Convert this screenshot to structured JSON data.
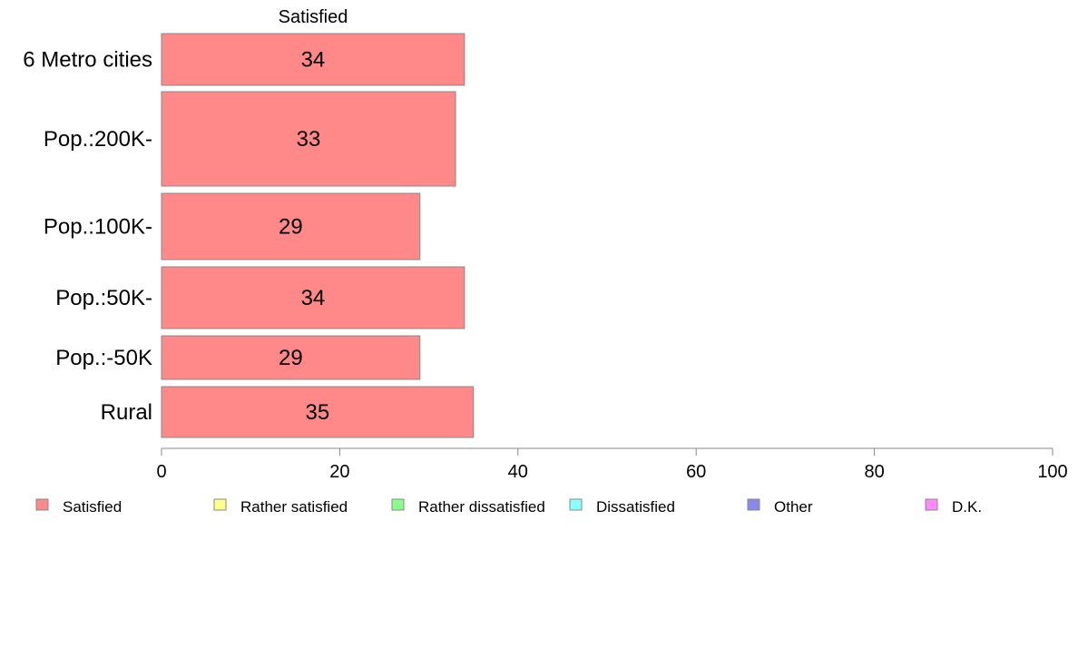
{
  "chart_data": {
    "type": "bar",
    "orientation": "horizontal",
    "series_title": "Satisfied",
    "categories": [
      "6 Metro cities",
      "Pop.:200K-",
      "Pop.:100K-",
      "Pop.:50K-",
      "Pop.:-50K",
      "Rural"
    ],
    "series": [
      {
        "name": "Satisfied",
        "values": [
          34,
          33,
          29,
          34,
          29,
          35
        ],
        "color": "#ff8888"
      }
    ],
    "value_labels": [
      "34",
      "33",
      "29",
      "34",
      "29",
      "35"
    ],
    "xlim": [
      0,
      100
    ],
    "xticks": [
      0,
      20,
      40,
      60,
      80,
      100
    ],
    "grid": false,
    "legend_position": "bottom",
    "legend": [
      {
        "label": "Satisfied",
        "color": "#ff8888"
      },
      {
        "label": "Rather satisfied",
        "color": "#ffff88"
      },
      {
        "label": "Rather dissatisfied",
        "color": "#88ff88"
      },
      {
        "label": "Dissatisfied",
        "color": "#88ffff"
      },
      {
        "label": "Other",
        "color": "#8888ee"
      },
      {
        "label": "D.K.",
        "color": "#ff88ff"
      }
    ]
  }
}
